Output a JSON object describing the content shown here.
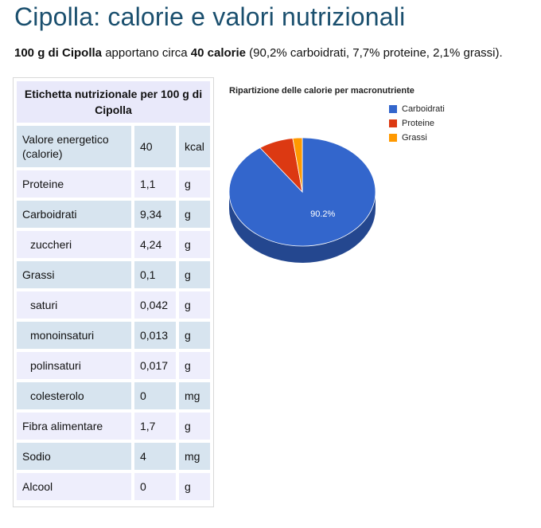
{
  "page": {
    "title": "Cipolla: calorie e valori nutrizionali",
    "intro": {
      "food_bold": "100 g di Cipolla",
      "mid": "apportano circa",
      "cal_bold": "40 calorie",
      "tail": "(90,2% carboidrati, 7,7% proteine, 2,1% grassi)."
    }
  },
  "nutrition_table": {
    "header": "Etichetta nutrizionale per 100 g di Cipolla",
    "rows": [
      {
        "name": "Valore energetico (calorie)",
        "value": "40",
        "unit": "kcal"
      },
      {
        "name": "Proteine",
        "value": "1,1",
        "unit": "g"
      },
      {
        "name": "Carboidrati",
        "value": "9,34",
        "unit": "g"
      },
      {
        "name": "zuccheri",
        "value": "4,24",
        "unit": "g"
      },
      {
        "name": "Grassi",
        "value": "0,1",
        "unit": "g"
      },
      {
        "name": "saturi",
        "value": "0,042",
        "unit": "g"
      },
      {
        "name": "monoinsaturi",
        "value": "0,013",
        "unit": "g"
      },
      {
        "name": "polinsaturi",
        "value": "0,017",
        "unit": "g"
      },
      {
        "name": "colesterolo",
        "value": "0",
        "unit": "mg"
      },
      {
        "name": "Fibra alimentare",
        "value": "1,7",
        "unit": "g"
      },
      {
        "name": "Sodio",
        "value": "4",
        "unit": "mg"
      },
      {
        "name": "Alcool",
        "value": "0",
        "unit": "g"
      }
    ]
  },
  "chart_data": {
    "type": "pie",
    "title": "Ripartizione delle calorie per macronutriente",
    "categories": [
      "Carboidrati",
      "Proteine",
      "Grassi"
    ],
    "values": [
      90.2,
      7.7,
      2.1
    ],
    "colors": [
      "#3366cc",
      "#dc3912",
      "#ff9900"
    ],
    "data_labels": [
      "90.2%",
      "",
      ""
    ],
    "legend": "right",
    "style": "3d"
  }
}
